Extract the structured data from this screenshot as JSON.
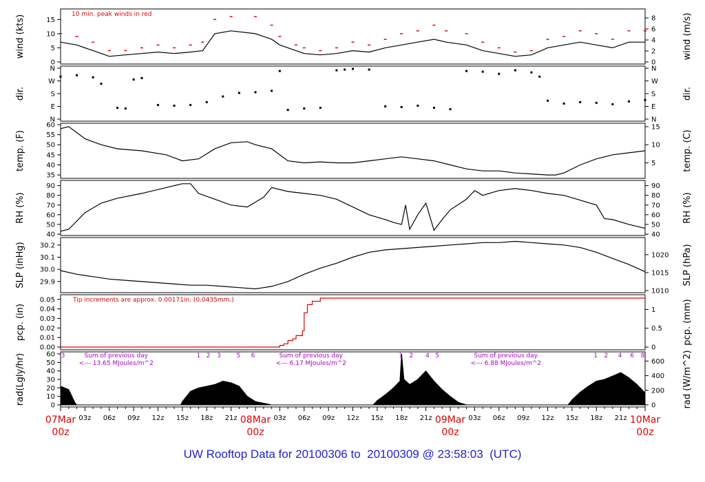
{
  "footer": {
    "prefix": "UW Rooftop Data for ",
    "start": "20100306",
    "to_word": "to",
    "end": "20100309",
    "at": "@",
    "time": "23:58:03",
    "zone": "(UTC)"
  },
  "colors": {
    "trace": "#000000",
    "peak": "#dd0000",
    "precip": "#dd0000",
    "purple": "#aa00cc",
    "date": "#dd0000",
    "footer": "#1f1fd0"
  },
  "chart_data": {
    "type": "line",
    "x_axis": {
      "hours_total": 72,
      "minor_tick_hours": 1,
      "labels": [
        {
          "hour": 3,
          "text": "03z"
        },
        {
          "hour": 6,
          "text": "06z"
        },
        {
          "hour": 9,
          "text": "09z"
        },
        {
          "hour": 12,
          "text": "12z"
        },
        {
          "hour": 15,
          "text": "15z"
        },
        {
          "hour": 18,
          "text": "18z"
        },
        {
          "hour": 21,
          "text": "21z"
        },
        {
          "hour": 27,
          "text": "03z"
        },
        {
          "hour": 30,
          "text": "06z"
        },
        {
          "hour": 33,
          "text": "09z"
        },
        {
          "hour": 36,
          "text": "12z"
        },
        {
          "hour": 39,
          "text": "15z"
        },
        {
          "hour": 42,
          "text": "18z"
        },
        {
          "hour": 45,
          "text": "21z"
        },
        {
          "hour": 51,
          "text": "03z"
        },
        {
          "hour": 54,
          "text": "06z"
        },
        {
          "hour": 57,
          "text": "09z"
        },
        {
          "hour": 60,
          "text": "12z"
        },
        {
          "hour": 63,
          "text": "15z"
        },
        {
          "hour": 66,
          "text": "18z"
        },
        {
          "hour": 69,
          "text": "21z"
        }
      ],
      "date_labels": [
        {
          "hour": 0,
          "date": "07Mar",
          "time": "00z"
        },
        {
          "hour": 24,
          "date": "08Mar",
          "time": "00z"
        },
        {
          "hour": 48,
          "date": "09Mar",
          "time": "00z"
        },
        {
          "hour": 72,
          "date": "10Mar",
          "time": "00z"
        }
      ]
    },
    "panels": [
      {
        "id": "wind",
        "ylabel_left": "wind (kts)",
        "ylabel_right": "wind (m/s)",
        "ylim": [
          0,
          18
        ],
        "left_ticks": [
          0,
          5,
          10,
          15
        ],
        "right_ticks": [
          0,
          2,
          4,
          6,
          8
        ],
        "right_factor": 0.5144,
        "annotation": "10 min. peak winds in red",
        "series": [
          {
            "name": "wind",
            "x": [
              0,
              2,
              4,
              6,
              8,
              10,
              12,
              14,
              16,
              17.5,
              19,
              21,
              24,
              26,
              27,
              29,
              30,
              32,
              34,
              36,
              38,
              40,
              42,
              44,
              46,
              47.5,
              50,
              52,
              54,
              56,
              58,
              60,
              62,
              64,
              66,
              68,
              70,
              72
            ],
            "y": [
              7,
              6,
              4,
              2,
              2.5,
              3,
              3.5,
              3,
              3.5,
              4,
              10,
              11,
              10,
              8,
              6,
              4,
              3,
              2.5,
              3,
              4,
              3.5,
              5,
              6,
              7,
              8,
              7,
              6,
              4,
              3,
              2,
              2.5,
              5,
              6,
              7,
              6,
              5,
              7,
              7
            ]
          },
          {
            "name": "peak",
            "x": [
              0,
              2,
              4,
              6,
              8,
              10,
              12,
              14,
              16,
              17.5,
              19,
              21,
              24,
              26,
              27,
              29,
              30,
              32,
              34,
              36,
              38,
              40,
              42,
              44,
              46,
              47.5,
              50,
              52,
              54,
              56,
              58,
              60,
              62,
              64,
              66,
              68,
              70,
              72
            ],
            "y": [
              10,
              9,
              7,
              4,
              4,
              5,
              6,
              5,
              6,
              7,
              15,
              16,
              16,
              13,
              9,
              6,
              5,
              4,
              5,
              7,
              6,
              8,
              10,
              11,
              13,
              11,
              10,
              7,
              5,
              3.5,
              4,
              8,
              9,
              11,
              10,
              8,
              11,
              11
            ]
          }
        ]
      },
      {
        "id": "dir",
        "ylabel_left": "dir.",
        "ylabel_right": "dir.",
        "ylim": [
          0,
          360
        ],
        "left_tick_values": [
          0,
          90,
          180,
          270,
          360
        ],
        "left_tick_labels": [
          "N",
          "E",
          "S",
          "W",
          "N"
        ],
        "right_tick_values": [
          0,
          90,
          180,
          270,
          360
        ],
        "right_tick_labels": [
          "N",
          "E",
          "S",
          "W",
          "N"
        ],
        "series": [
          {
            "name": "direction",
            "style": "dots",
            "x": [
              0,
              2,
              4,
              5,
              7,
              8,
              9,
              10,
              12,
              14,
              16,
              18,
              20,
              22,
              24,
              26,
              27,
              28,
              30,
              32,
              34,
              35,
              36,
              38,
              40,
              42,
              44,
              46,
              48,
              50,
              52,
              54,
              56,
              58,
              59,
              60,
              62,
              64,
              66,
              68,
              70,
              72
            ],
            "y": [
              300,
              310,
              295,
              250,
              80,
              75,
              280,
              290,
              100,
              95,
              100,
              120,
              160,
              185,
              190,
              200,
              340,
              65,
              75,
              80,
              345,
              350,
              355,
              350,
              90,
              85,
              95,
              80,
              70,
              340,
              335,
              320,
              345,
              330,
              300,
              130,
              110,
              120,
              115,
              105,
              125,
              135
            ]
          }
        ]
      },
      {
        "id": "temp",
        "ylabel_left": "temp. (F)",
        "ylabel_right": "temp. (C)",
        "ylim": [
          34,
          60
        ],
        "left_ticks": [
          35,
          40,
          45,
          50,
          55,
          60
        ],
        "right_ticks": [
          5,
          10,
          15
        ],
        "right_transform": "F_to_C",
        "series": [
          {
            "name": "temperature",
            "x": [
              0,
              1,
              3,
              5,
              7,
              10,
              13,
              15,
              17,
              19,
              21,
              23,
              24,
              25,
              26,
              28,
              30,
              32,
              34,
              36,
              38,
              40,
              42,
              44,
              46,
              48,
              50,
              52,
              54,
              56,
              58,
              60,
              61,
              62,
              64,
              66,
              68,
              70,
              72
            ],
            "y": [
              58,
              59,
              53,
              50,
              48,
              47,
              45,
              42,
              43,
              48,
              51,
              51.5,
              50,
              49,
              48,
              42,
              41,
              41.5,
              41,
              41,
              42,
              43,
              44,
              43,
              42,
              40,
              38,
              37,
              37,
              36,
              35.5,
              35,
              35,
              36,
              40,
              43,
              45,
              46,
              47
            ]
          }
        ]
      },
      {
        "id": "rh",
        "ylabel_left": "RH (%)",
        "ylabel_right": "RH (%)",
        "ylim": [
          40,
          94
        ],
        "left_ticks": [
          40,
          50,
          60,
          70,
          80,
          90
        ],
        "right_ticks": [
          40,
          50,
          60,
          70,
          80,
          90
        ],
        "series": [
          {
            "name": "relative humidity",
            "x": [
              0,
              1,
              3,
              5,
              7,
              10,
              13,
              15,
              16,
              17,
              19,
              21,
              23,
              25,
              26,
              28,
              30,
              32,
              34,
              36,
              38,
              40,
              41,
              42,
              42.5,
              43,
              44,
              45,
              46,
              47,
              48,
              50,
              51,
              52,
              54,
              56,
              58,
              60,
              62,
              64,
              66,
              67,
              68,
              70,
              72
            ],
            "y": [
              43,
              45,
              62,
              72,
              77,
              82,
              88,
              92,
              92,
              82,
              76,
              70,
              68,
              78,
              88,
              84,
              82,
              80,
              76,
              68,
              60,
              55,
              52,
              50,
              70,
              45,
              60,
              72,
              44,
              55,
              65,
              76,
              85,
              80,
              85,
              87,
              85,
              82,
              80,
              75,
              70,
              56,
              55,
              50,
              46
            ]
          }
        ]
      },
      {
        "id": "slp",
        "ylabel_left": "SLP (inHg)",
        "ylabel_right": "SLP (hPa)",
        "ylim": [
          29.82,
          30.25
        ],
        "left_ticks": [
          29.9,
          30.0,
          30.1,
          30.2
        ],
        "left_tick_labels": [
          "29.9",
          "30.0",
          "30.1",
          "30.2"
        ],
        "right_ticks": [
          1010,
          1015,
          1020
        ],
        "right_factor": 33.8639,
        "series": [
          {
            "name": "sea level pressure",
            "x": [
              0,
              2,
              4,
              6,
              8,
              10,
              12,
              14,
              16,
              18,
              20,
              22,
              24,
              26,
              28,
              30,
              32,
              34,
              36,
              38,
              40,
              42,
              44,
              46,
              48,
              50,
              52,
              54,
              56,
              58,
              60,
              62,
              64,
              66,
              68,
              70,
              72
            ],
            "y": [
              29.99,
              29.96,
              29.94,
              29.92,
              29.91,
              29.9,
              29.89,
              29.88,
              29.87,
              29.87,
              29.86,
              29.85,
              29.84,
              29.86,
              29.9,
              29.96,
              30.01,
              30.05,
              30.1,
              30.14,
              30.16,
              30.17,
              30.18,
              30.19,
              30.2,
              30.21,
              30.22,
              30.22,
              30.23,
              30.22,
              30.21,
              30.2,
              30.18,
              30.14,
              30.09,
              30.04,
              29.98
            ]
          }
        ]
      },
      {
        "id": "pcp",
        "ylabel_left": "pcp. (in)",
        "ylabel_right": "pcp. (mm)",
        "ylim": [
          0,
          0.052
        ],
        "left_ticks": [
          0,
          0.01,
          0.02,
          0.03,
          0.04,
          0.05
        ],
        "left_tick_labels": [
          "0.00",
          "0.01",
          "0.02",
          "0.03",
          "0.04",
          "0.05"
        ],
        "right_ticks": [
          0,
          0.5,
          1
        ],
        "right_tick_labels": [
          "0",
          "0.5",
          "1"
        ],
        "right_factor": 25.4,
        "annotation": "Tip increments are approx. 0.00171in. (0.0435mm.)",
        "series": [
          {
            "name": "precip",
            "style": "step",
            "x": [
              0,
              26.5,
              27,
              27.5,
              28,
              28.6,
              29,
              29.5,
              29.8,
              30,
              30.4,
              31,
              32,
              33,
              72
            ],
            "y": [
              0,
              0,
              0.0017,
              0.0034,
              0.0068,
              0.0085,
              0.012,
              0.012,
              0.0171,
              0.036,
              0.0445,
              0.048,
              0.0513,
              0.0513,
              0.0513
            ]
          }
        ]
      },
      {
        "id": "rad",
        "ylabel_left": "rad(Lgly/hr)",
        "ylabel_right": "rad (W/m^2)",
        "ylim": [
          0,
          60
        ],
        "left_ticks": [
          0,
          10,
          20,
          30,
          40,
          50,
          60
        ],
        "right_ticks": [
          0,
          200,
          400,
          600
        ],
        "right_factor": 11.63,
        "daily_sums": [
          {
            "text": "Sum of previous day",
            "value": "<--- 13.65 MJoules/m^2",
            "hour": 6
          },
          {
            "text": "Sum of previous day",
            "value": "<--- 6.17 MJoules/m^2",
            "hour": 30
          },
          {
            "text": "Sum of previous day",
            "value": "<--- 6.88 MJoules/m^2",
            "hour": 54
          }
        ],
        "hour_markers": [
          {
            "hour": 0.3,
            "text": "3"
          },
          {
            "hour": 17,
            "text": "1"
          },
          {
            "hour": 18.2,
            "text": "2"
          },
          {
            "hour": 19.5,
            "text": "3"
          },
          {
            "hour": 21.9,
            "text": "5"
          },
          {
            "hour": 23.7,
            "text": "6"
          },
          {
            "hour": 41.9,
            "text": "1"
          },
          {
            "hour": 43.2,
            "text": "2"
          },
          {
            "hour": 45.2,
            "text": "4"
          },
          {
            "hour": 46.4,
            "text": "5"
          },
          {
            "hour": 65.9,
            "text": "1"
          },
          {
            "hour": 67.2,
            "text": "2"
          },
          {
            "hour": 68.9,
            "text": "4"
          },
          {
            "hour": 70.4,
            "text": "6"
          },
          {
            "hour": 71.7,
            "text": "8"
          }
        ],
        "series": [
          {
            "name": "radiation",
            "style": "area",
            "x": [
              0,
              1,
              1.8,
              2,
              14.8,
              15,
              16,
              17,
              18,
              19,
              20,
              21,
              22,
              23,
              24,
              25,
              26,
              38.5,
              39,
              40,
              41,
              41.8,
              42,
              42.3,
              43,
              44,
              45,
              46,
              47,
              48,
              49,
              50,
              62.5,
              63,
              64,
              65,
              66,
              67,
              68,
              69,
              70,
              71,
              72
            ],
            "y": [
              22,
              18,
              2,
              0,
              0,
              4,
              16,
              20,
              22,
              24,
              28,
              26,
              22,
              10,
              4,
              2,
              0,
              0,
              5,
              12,
              20,
              28,
              60,
              30,
              24,
              30,
              40,
              28,
              18,
              10,
              3,
              0,
              0,
              6,
              15,
              22,
              28,
              30,
              34,
              38,
              32,
              24,
              14
            ]
          }
        ]
      }
    ]
  }
}
